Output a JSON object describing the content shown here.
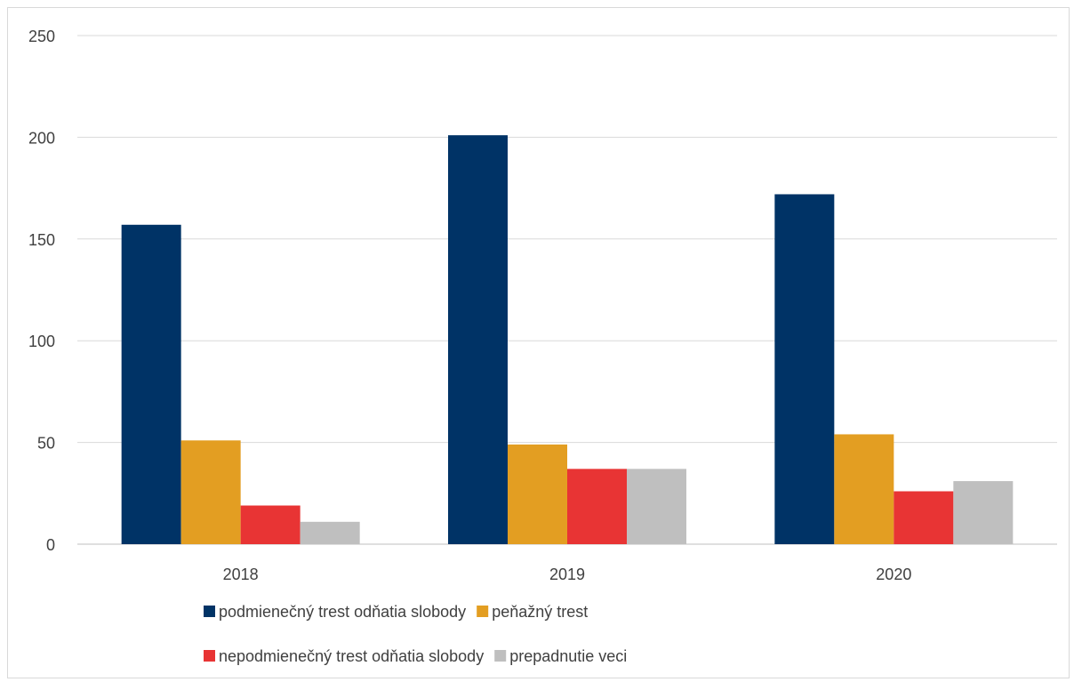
{
  "chart_data": {
    "type": "bar",
    "title": "",
    "xlabel": "",
    "ylabel": "",
    "categories": [
      "2018",
      "2019",
      "2020"
    ],
    "ylim": [
      0,
      250
    ],
    "yticks": [
      0,
      50,
      100,
      150,
      200,
      250
    ],
    "grid": true,
    "legend_position": "bottom",
    "series": [
      {
        "name": "podmienečný trest odňatia slobody",
        "color": "#003366",
        "values": [
          157,
          201,
          172
        ]
      },
      {
        "name": "peňažný trest",
        "color": "#E39E22",
        "values": [
          51,
          49,
          54
        ]
      },
      {
        "name": "nepodmienečný trest odňatia slobody",
        "color": "#E83434",
        "values": [
          19,
          37,
          26
        ]
      },
      {
        "name": "prepadnutie veci",
        "color": "#BFBFBF",
        "values": [
          11,
          37,
          31
        ]
      }
    ]
  }
}
